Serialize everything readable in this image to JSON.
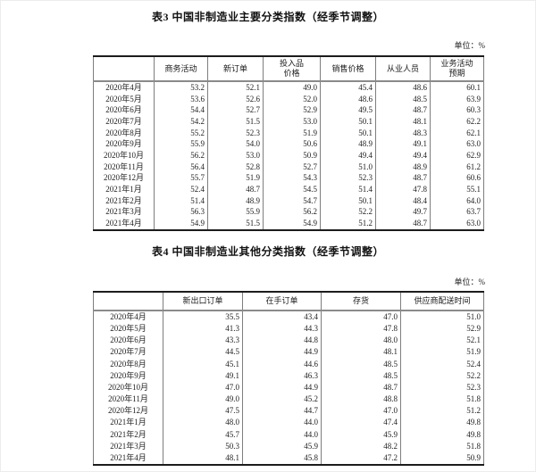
{
  "tables": [
    {
      "title": "表3  中国非制造业主要分类指数（经季节调整）",
      "unit_label": "单位：%",
      "columns": [
        "",
        "商务活动",
        "新订单",
        "投入品\n价格",
        "销售价格",
        "从业人员",
        "业务活动\n预期"
      ],
      "rows": [
        [
          "2020年4月",
          "53.2",
          "52.1",
          "49.0",
          "45.4",
          "48.6",
          "60.1"
        ],
        [
          "2020年5月",
          "53.6",
          "52.6",
          "52.0",
          "48.6",
          "48.5",
          "63.9"
        ],
        [
          "2020年6月",
          "54.4",
          "52.7",
          "52.9",
          "49.5",
          "48.7",
          "60.3"
        ],
        [
          "2020年7月",
          "54.2",
          "51.5",
          "53.0",
          "50.1",
          "48.1",
          "62.2"
        ],
        [
          "2020年8月",
          "55.2",
          "52.3",
          "51.9",
          "50.1",
          "48.3",
          "62.1"
        ],
        [
          "2020年9月",
          "55.9",
          "54.0",
          "50.6",
          "48.9",
          "49.1",
          "63.0"
        ],
        [
          "2020年10月",
          "56.2",
          "53.0",
          "50.9",
          "49.4",
          "49.4",
          "62.9"
        ],
        [
          "2020年11月",
          "56.4",
          "52.8",
          "52.7",
          "51.0",
          "48.9",
          "61.2"
        ],
        [
          "2020年12月",
          "55.7",
          "51.9",
          "54.3",
          "52.3",
          "48.7",
          "60.6"
        ],
        [
          "2021年1月",
          "52.4",
          "48.7",
          "54.5",
          "51.4",
          "47.8",
          "55.1"
        ],
        [
          "2021年2月",
          "51.4",
          "48.9",
          "54.7",
          "50.1",
          "48.4",
          "64.0"
        ],
        [
          "2021年3月",
          "56.3",
          "55.9",
          "56.2",
          "52.2",
          "49.7",
          "63.7"
        ],
        [
          "2021年4月",
          "54.9",
          "51.5",
          "54.9",
          "51.2",
          "48.7",
          "63.0"
        ]
      ]
    },
    {
      "title": "表4  中国非制造业其他分类指数（经季节调整）",
      "unit_label": "单位：%",
      "columns": [
        "",
        "新出口订单",
        "在手订单",
        "存货",
        "供应商配送时间"
      ],
      "rows": [
        [
          "2020年4月",
          "35.5",
          "43.4",
          "47.0",
          "51.0"
        ],
        [
          "2020年5月",
          "41.3",
          "44.3",
          "47.8",
          "52.9"
        ],
        [
          "2020年6月",
          "43.3",
          "44.8",
          "48.0",
          "52.1"
        ],
        [
          "2020年7月",
          "44.5",
          "44.9",
          "48.1",
          "51.9"
        ],
        [
          "2020年8月",
          "45.1",
          "44.6",
          "48.5",
          "52.4"
        ],
        [
          "2020年9月",
          "49.1",
          "46.3",
          "48.5",
          "52.2"
        ],
        [
          "2020年10月",
          "47.0",
          "44.9",
          "48.7",
          "52.3"
        ],
        [
          "2020年11月",
          "49.0",
          "45.2",
          "48.8",
          "51.8"
        ],
        [
          "2020年12月",
          "47.5",
          "44.7",
          "47.0",
          "51.2"
        ],
        [
          "2021年1月",
          "48.0",
          "44.0",
          "47.4",
          "49.8"
        ],
        [
          "2021年2月",
          "45.7",
          "44.0",
          "45.9",
          "49.8"
        ],
        [
          "2021年3月",
          "50.3",
          "45.9",
          "48.2",
          "51.8"
        ],
        [
          "2021年4月",
          "48.1",
          "45.8",
          "47.2",
          "50.9"
        ]
      ]
    }
  ]
}
